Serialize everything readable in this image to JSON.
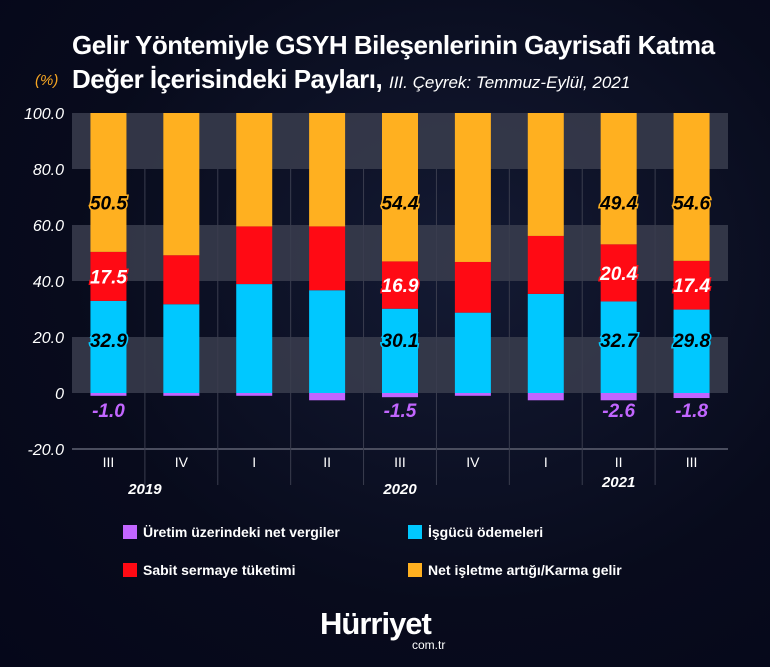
{
  "title_main_line1": "Gelir Yöntemiyle GSYH Bileşenlerinin Gayrisafi Katma",
  "title_main_line2": "Değer İçerisindeki Payları,",
  "title_sub": "III. Çeyrek: Temmuz-Eylül, 2021",
  "brand": {
    "name": "Hürriyet",
    "domain": "com.tr"
  },
  "chart_data": {
    "type": "bar",
    "stacked": true,
    "unit_label": "(%)",
    "ylim": [
      -20,
      100
    ],
    "yticks": [
      "100.0",
      "80.0",
      "60.0",
      "40.0",
      "20.0",
      "0",
      "-20.0"
    ],
    "ytick_values": [
      100,
      80,
      60,
      40,
      20,
      0,
      -20
    ],
    "categories": [
      "III",
      "IV",
      "I",
      "II",
      "III",
      "IV",
      "I",
      "II",
      "III"
    ],
    "years": [
      {
        "label": "2019",
        "category_index": 0.5
      },
      {
        "label": "2020",
        "category_index": 4
      },
      {
        "label": "2021",
        "category_index": 7
      }
    ],
    "grid": "alternating horizontal bands",
    "legend_placement": "bottom",
    "series": [
      {
        "name": "Üretim üzerindeki net vergiler",
        "color": "#c266ff",
        "values": [
          -1.0,
          -1.0,
          -1.0,
          -2.6,
          -1.5,
          -1.0,
          -2.6,
          -2.6,
          -1.8
        ],
        "labels": [
          "-1.0",
          "",
          "",
          "",
          "-1.5",
          "",
          "",
          "-2.6",
          "-1.8"
        ]
      },
      {
        "name": "İşgücü ödemeleri",
        "color": "#00c8ff",
        "values": [
          32.9,
          31.7,
          38.9,
          36.7,
          30.1,
          28.7,
          35.4,
          32.7,
          29.8
        ],
        "labels": [
          "32.9",
          "",
          "",
          "",
          "30.1",
          "",
          "",
          "32.7",
          "29.8"
        ]
      },
      {
        "name": "Sabit sermaye tüketimi",
        "color": "#ff0a14",
        "values": [
          17.5,
          17.5,
          20.6,
          22.8,
          16.9,
          18.1,
          20.7,
          20.4,
          17.4
        ],
        "labels": [
          "17.5",
          "",
          "",
          "",
          "16.9",
          "",
          "",
          "20.4",
          "17.4"
        ]
      },
      {
        "name": "Net işletme artığı/Karma gelir",
        "color": "#ffb020",
        "values": [
          50.5,
          50.8,
          40.5,
          40.5,
          54.4,
          53.2,
          43.9,
          49.4,
          54.6
        ],
        "labels": [
          "50.5",
          "",
          "",
          "",
          "54.4",
          "",
          "",
          "49.4",
          "54.6"
        ]
      }
    ]
  }
}
